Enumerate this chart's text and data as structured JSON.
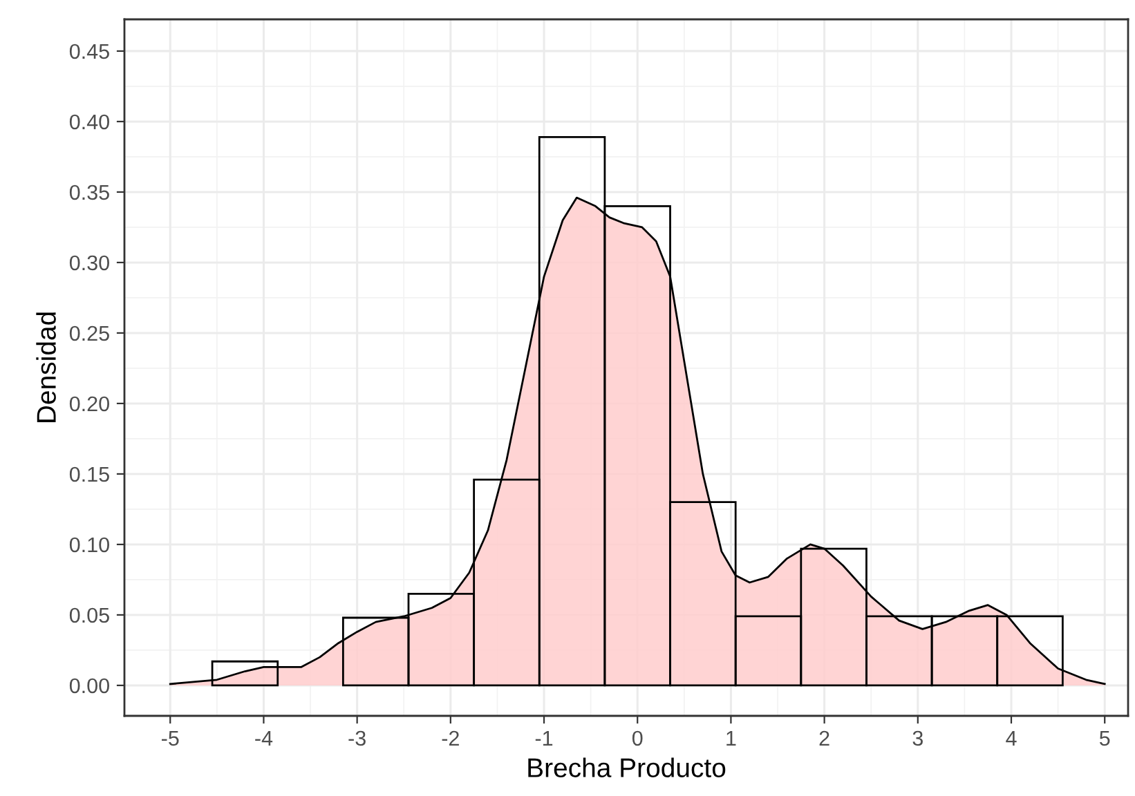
{
  "chart_data": {
    "type": "histogram",
    "xlabel": "Brecha Producto",
    "ylabel": "Densidad",
    "bins": [
      -4.55,
      -3.85,
      -3.15,
      -2.45,
      -1.75,
      -1.05,
      -0.35,
      0.35,
      1.05,
      1.75,
      2.45,
      3.15,
      3.85,
      4.55
    ],
    "values": [
      0.017,
      0,
      0.048,
      0.065,
      0.146,
      0.389,
      0.34,
      0.13,
      0.049,
      0.097,
      0.049,
      0.049,
      0.049
    ],
    "color": "#000000",
    "series": [
      {
        "type": "area",
        "color": "#ffcccc",
        "x": [
          -5,
          -4.5,
          -4.2,
          -4.0,
          -3.6,
          -3.4,
          -3.2,
          -3.0,
          -2.8,
          -2.5,
          -2.2,
          -2.0,
          -1.8,
          -1.6,
          -1.4,
          -1.2,
          -1.0,
          -0.8,
          -0.65,
          -0.45,
          -0.3,
          -0.15,
          0.05,
          0.2,
          0.35,
          0.5,
          0.7,
          0.9,
          1.05,
          1.2,
          1.4,
          1.6,
          1.85,
          2.0,
          2.2,
          2.5,
          2.8,
          3.05,
          3.3,
          3.55,
          3.75,
          3.95,
          4.2,
          4.5,
          4.8,
          5.0
        ],
        "values": [
          0.001,
          0.004,
          0.01,
          0.013,
          0.013,
          0.02,
          0.03,
          0.038,
          0.045,
          0.049,
          0.055,
          0.062,
          0.08,
          0.11,
          0.16,
          0.225,
          0.29,
          0.33,
          0.346,
          0.34,
          0.332,
          0.328,
          0.325,
          0.315,
          0.29,
          0.23,
          0.15,
          0.095,
          0.078,
          0.073,
          0.077,
          0.09,
          0.1,
          0.097,
          0.085,
          0.063,
          0.046,
          0.04,
          0.045,
          0.053,
          0.057,
          0.05,
          0.03,
          0.012,
          0.004,
          0.001
        ]
      }
    ],
    "xlim": [
      -5.49,
      5.25
    ],
    "ylim": [
      -0.0216,
      0.4725
    ],
    "xticks": [
      -5,
      -4,
      -3,
      -2,
      -1,
      0,
      1,
      2,
      3,
      4,
      5
    ],
    "yticks": [
      {
        "value": 0,
        "label": "0.00"
      },
      {
        "value": 0.05,
        "label": "0.05"
      },
      {
        "value": 0.1,
        "label": "0.10"
      },
      {
        "value": 0.15,
        "label": "0.15"
      },
      {
        "value": 0.2,
        "label": "0.20"
      },
      {
        "value": 0.25,
        "label": "0.25"
      },
      {
        "value": 0.3,
        "label": "0.30"
      },
      {
        "value": 0.35,
        "label": "0.35"
      },
      {
        "value": 0.4,
        "label": "0.40"
      },
      {
        "value": 0.45,
        "label": "0.45"
      }
    ],
    "grid": true
  }
}
